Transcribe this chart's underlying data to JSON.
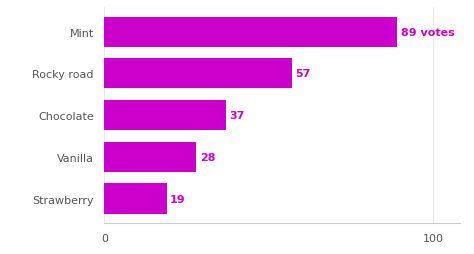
{
  "categories": [
    "Mint",
    "Rocky road",
    "Chocolate",
    "Vanilla",
    "Strawberry"
  ],
  "values": [
    89,
    57,
    37,
    28,
    19
  ],
  "labels": [
    "89 votes",
    "57",
    "37",
    "28",
    "19"
  ],
  "bar_color": "#cc00cc",
  "label_color": "#cc00cc",
  "text_color": "#555555",
  "background_color": "#ffffff",
  "xlim": [
    0,
    108
  ],
  "xticks": [
    0,
    100
  ],
  "bar_height": 0.72,
  "label_fontsize": 8.0,
  "tick_fontsize": 8.0
}
